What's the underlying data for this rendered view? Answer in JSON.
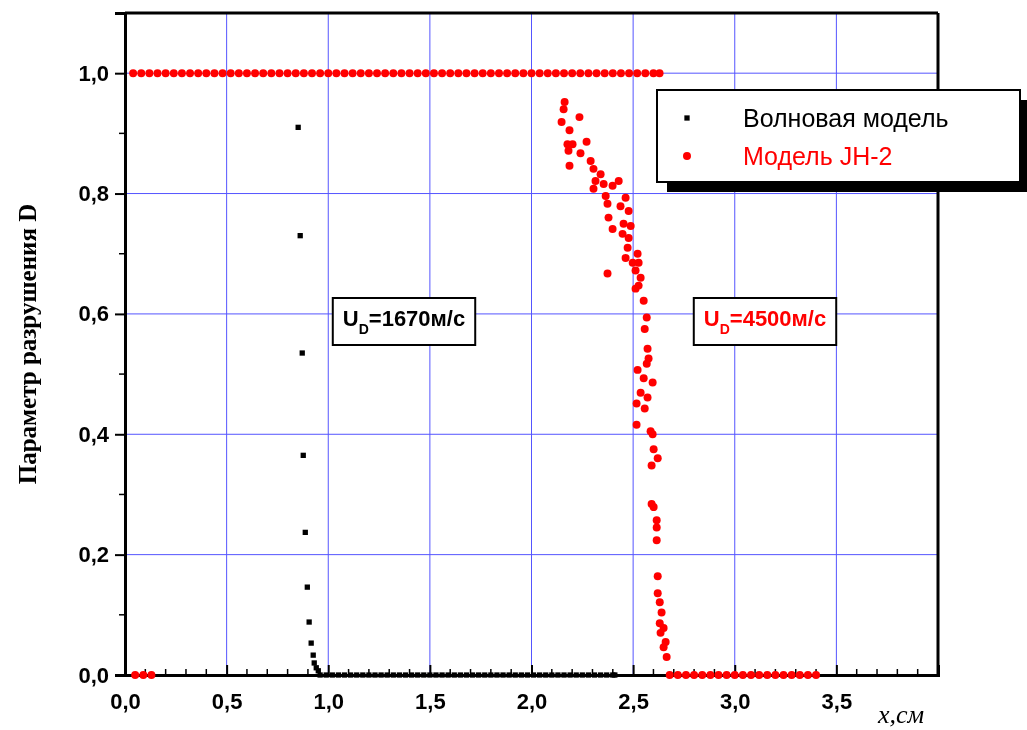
{
  "chart_data": {
    "type": "scatter",
    "xlabel": "x,см",
    "ylabel": "Параметр разрушения D",
    "xlim": [
      0,
      4.0
    ],
    "ylim": [
      0,
      1.1
    ],
    "xticks": [
      {
        "value": 0,
        "label": "0,0"
      },
      {
        "value": 0.5,
        "label": "0,5"
      },
      {
        "value": 1,
        "label": "1,0"
      },
      {
        "value": 1.5,
        "label": "1,5"
      },
      {
        "value": 2,
        "label": "2,0"
      },
      {
        "value": 2.5,
        "label": "2,5"
      },
      {
        "value": 3,
        "label": "3,0"
      },
      {
        "value": 3.5,
        "label": "3,5"
      },
      {
        "value": 4,
        "label": null
      }
    ],
    "yticks": [
      {
        "value": 0,
        "label": "0,0"
      },
      {
        "value": 0.2,
        "label": "0,2"
      },
      {
        "value": 0.4,
        "label": "0,4"
      },
      {
        "value": 0.6,
        "label": "0,6"
      },
      {
        "value": 0.8,
        "label": "0,8"
      },
      {
        "value": 1,
        "label": "1,0"
      }
    ],
    "grid": true,
    "legend": "top right",
    "annotations": [
      "U$_{D}$=1670м/с",
      "U$_{D}$=4500м/с"
    ],
    "series": [
      {
        "name": "Волновая модель",
        "color": "#000000",
        "marker": "square",
        "x": [
          0.852,
          0.862,
          0.872,
          0.877,
          0.887,
          0.897,
          0.906,
          0.916,
          0.926,
          0.931,
          0.941,
          0.951,
          0.96,
          0.99,
          1.02,
          1.05,
          1.08,
          1.11,
          1.14,
          1.17,
          1.2,
          1.23,
          1.26,
          1.29,
          1.32,
          1.35,
          1.38,
          1.41,
          1.44,
          1.47,
          1.5,
          1.53,
          1.56,
          1.59,
          1.62,
          1.65,
          1.68,
          1.71,
          1.74,
          1.77,
          1.8,
          1.83,
          1.86,
          1.89,
          1.92,
          1.95,
          1.98,
          2.01,
          2.04,
          2.07,
          2.1,
          2.13,
          2.16,
          2.19,
          2.22,
          2.25,
          2.28,
          2.31,
          2.34,
          2.37,
          2.4,
          2.41
        ],
        "values": [
          0.91,
          0.73,
          0.535,
          0.365,
          0.237,
          0.146,
          0.088,
          0.053,
          0.033,
          0.02,
          0.012,
          0.007,
          0,
          0,
          0,
          0,
          0,
          0,
          0,
          0,
          0,
          0,
          0,
          0,
          0,
          0,
          0,
          0,
          0,
          0,
          0,
          0,
          0,
          0,
          0,
          0,
          0,
          0,
          0,
          0,
          0,
          0,
          0,
          0,
          0,
          0,
          0,
          0,
          0,
          0,
          0,
          0,
          0,
          0,
          0,
          0,
          0,
          0,
          0,
          0,
          0,
          0
        ]
      },
      {
        "name": "Модель JH-2",
        "color": "#ff0000",
        "marker": "circle",
        "x": [
          0.05,
          0.09,
          0.13,
          0.04,
          0.08,
          0.12,
          0.16,
          0.2,
          0.24,
          0.28,
          0.32,
          0.36,
          0.4,
          0.44,
          0.48,
          0.52,
          0.56,
          0.6,
          0.64,
          0.68,
          0.72,
          0.76,
          0.8,
          0.84,
          0.88,
          0.92,
          0.96,
          1.0,
          1.04,
          1.08,
          1.12,
          1.16,
          1.2,
          1.24,
          1.28,
          1.32,
          1.36,
          1.4,
          1.44,
          1.48,
          1.52,
          1.56,
          1.6,
          1.64,
          1.68,
          1.72,
          1.76,
          1.8,
          1.84,
          1.88,
          1.92,
          1.96,
          2.0,
          2.04,
          2.08,
          2.12,
          2.16,
          2.2,
          2.24,
          2.28,
          2.32,
          2.36,
          2.4,
          2.44,
          2.48,
          2.52,
          2.56,
          2.6,
          2.63,
          2.163,
          2.158,
          2.236,
          2.148,
          2.187,
          2.177,
          2.271,
          2.202,
          2.182,
          2.241,
          2.187,
          2.291,
          2.305,
          2.34,
          2.315,
          2.429,
          2.355,
          2.305,
          2.399,
          2.365,
          2.463,
          2.374,
          2.438,
          2.478,
          2.379,
          2.453,
          2.488,
          2.399,
          2.448,
          2.478,
          2.473,
          2.522,
          2.463,
          2.498,
          2.527,
          2.512,
          2.374,
          2.537,
          2.527,
          2.512,
          2.552,
          2.567,
          2.557,
          2.571,
          2.576,
          2.567,
          2.522,
          2.552,
          2.596,
          2.537,
          2.571,
          2.517,
          2.557,
          2.517,
          2.586,
          2.596,
          2.601,
          2.621,
          2.591,
          2.591,
          2.601,
          2.616,
          2.616,
          2.616,
          2.621,
          2.621,
          2.631,
          2.64,
          2.631,
          2.65,
          2.635,
          2.66,
          2.65,
          2.665,
          2.68,
          2.72,
          2.76,
          2.8,
          2.84,
          2.88,
          2.92,
          2.96,
          3.0,
          3.04,
          3.08,
          3.12,
          3.16,
          3.2,
          3.24,
          3.28,
          3.32,
          3.36,
          3.4
        ],
        "values": [
          0,
          0,
          0,
          1,
          1,
          1,
          1,
          1,
          1,
          1,
          1,
          1,
          1,
          1,
          1,
          1,
          1,
          1,
          1,
          1,
          1,
          1,
          1,
          1,
          1,
          1,
          1,
          1,
          1,
          1,
          1,
          1,
          1,
          1,
          1,
          1,
          1,
          1,
          1,
          1,
          1,
          1,
          1,
          1,
          1,
          1,
          1,
          1,
          1,
          1,
          1,
          1,
          1,
          1,
          1,
          1,
          1,
          1,
          1,
          1,
          1,
          1,
          1,
          1,
          1,
          1,
          1,
          1,
          1,
          0.952,
          0.94,
          0.927,
          0.919,
          0.905,
          0.882,
          0.886,
          0.882,
          0.871,
          0.867,
          0.846,
          0.854,
          0.841,
          0.832,
          0.821,
          0.821,
          0.816,
          0.808,
          0.813,
          0.796,
          0.793,
          0.783,
          0.779,
          0.771,
          0.76,
          0.75,
          0.746,
          0.741,
          0.733,
          0.726,
          0.71,
          0.7,
          0.693,
          0.685,
          0.685,
          0.672,
          0.667,
          0.66,
          0.647,
          0.642,
          0.622,
          0.594,
          0.575,
          0.542,
          0.526,
          0.517,
          0.507,
          0.493,
          0.486,
          0.469,
          0.461,
          0.451,
          0.443,
          0.416,
          0.405,
          0.4,
          0.375,
          0.36,
          0.348,
          0.284,
          0.279,
          0.257,
          0.245,
          0.224,
          0.164,
          0.136,
          0.121,
          0.104,
          0.086,
          0.078,
          0.07,
          0.055,
          0.046,
          0.03,
          0,
          0,
          0,
          0,
          0,
          0,
          0,
          0,
          0,
          0,
          0,
          0,
          0,
          0,
          0,
          0,
          0,
          0,
          0
        ]
      }
    ]
  }
}
